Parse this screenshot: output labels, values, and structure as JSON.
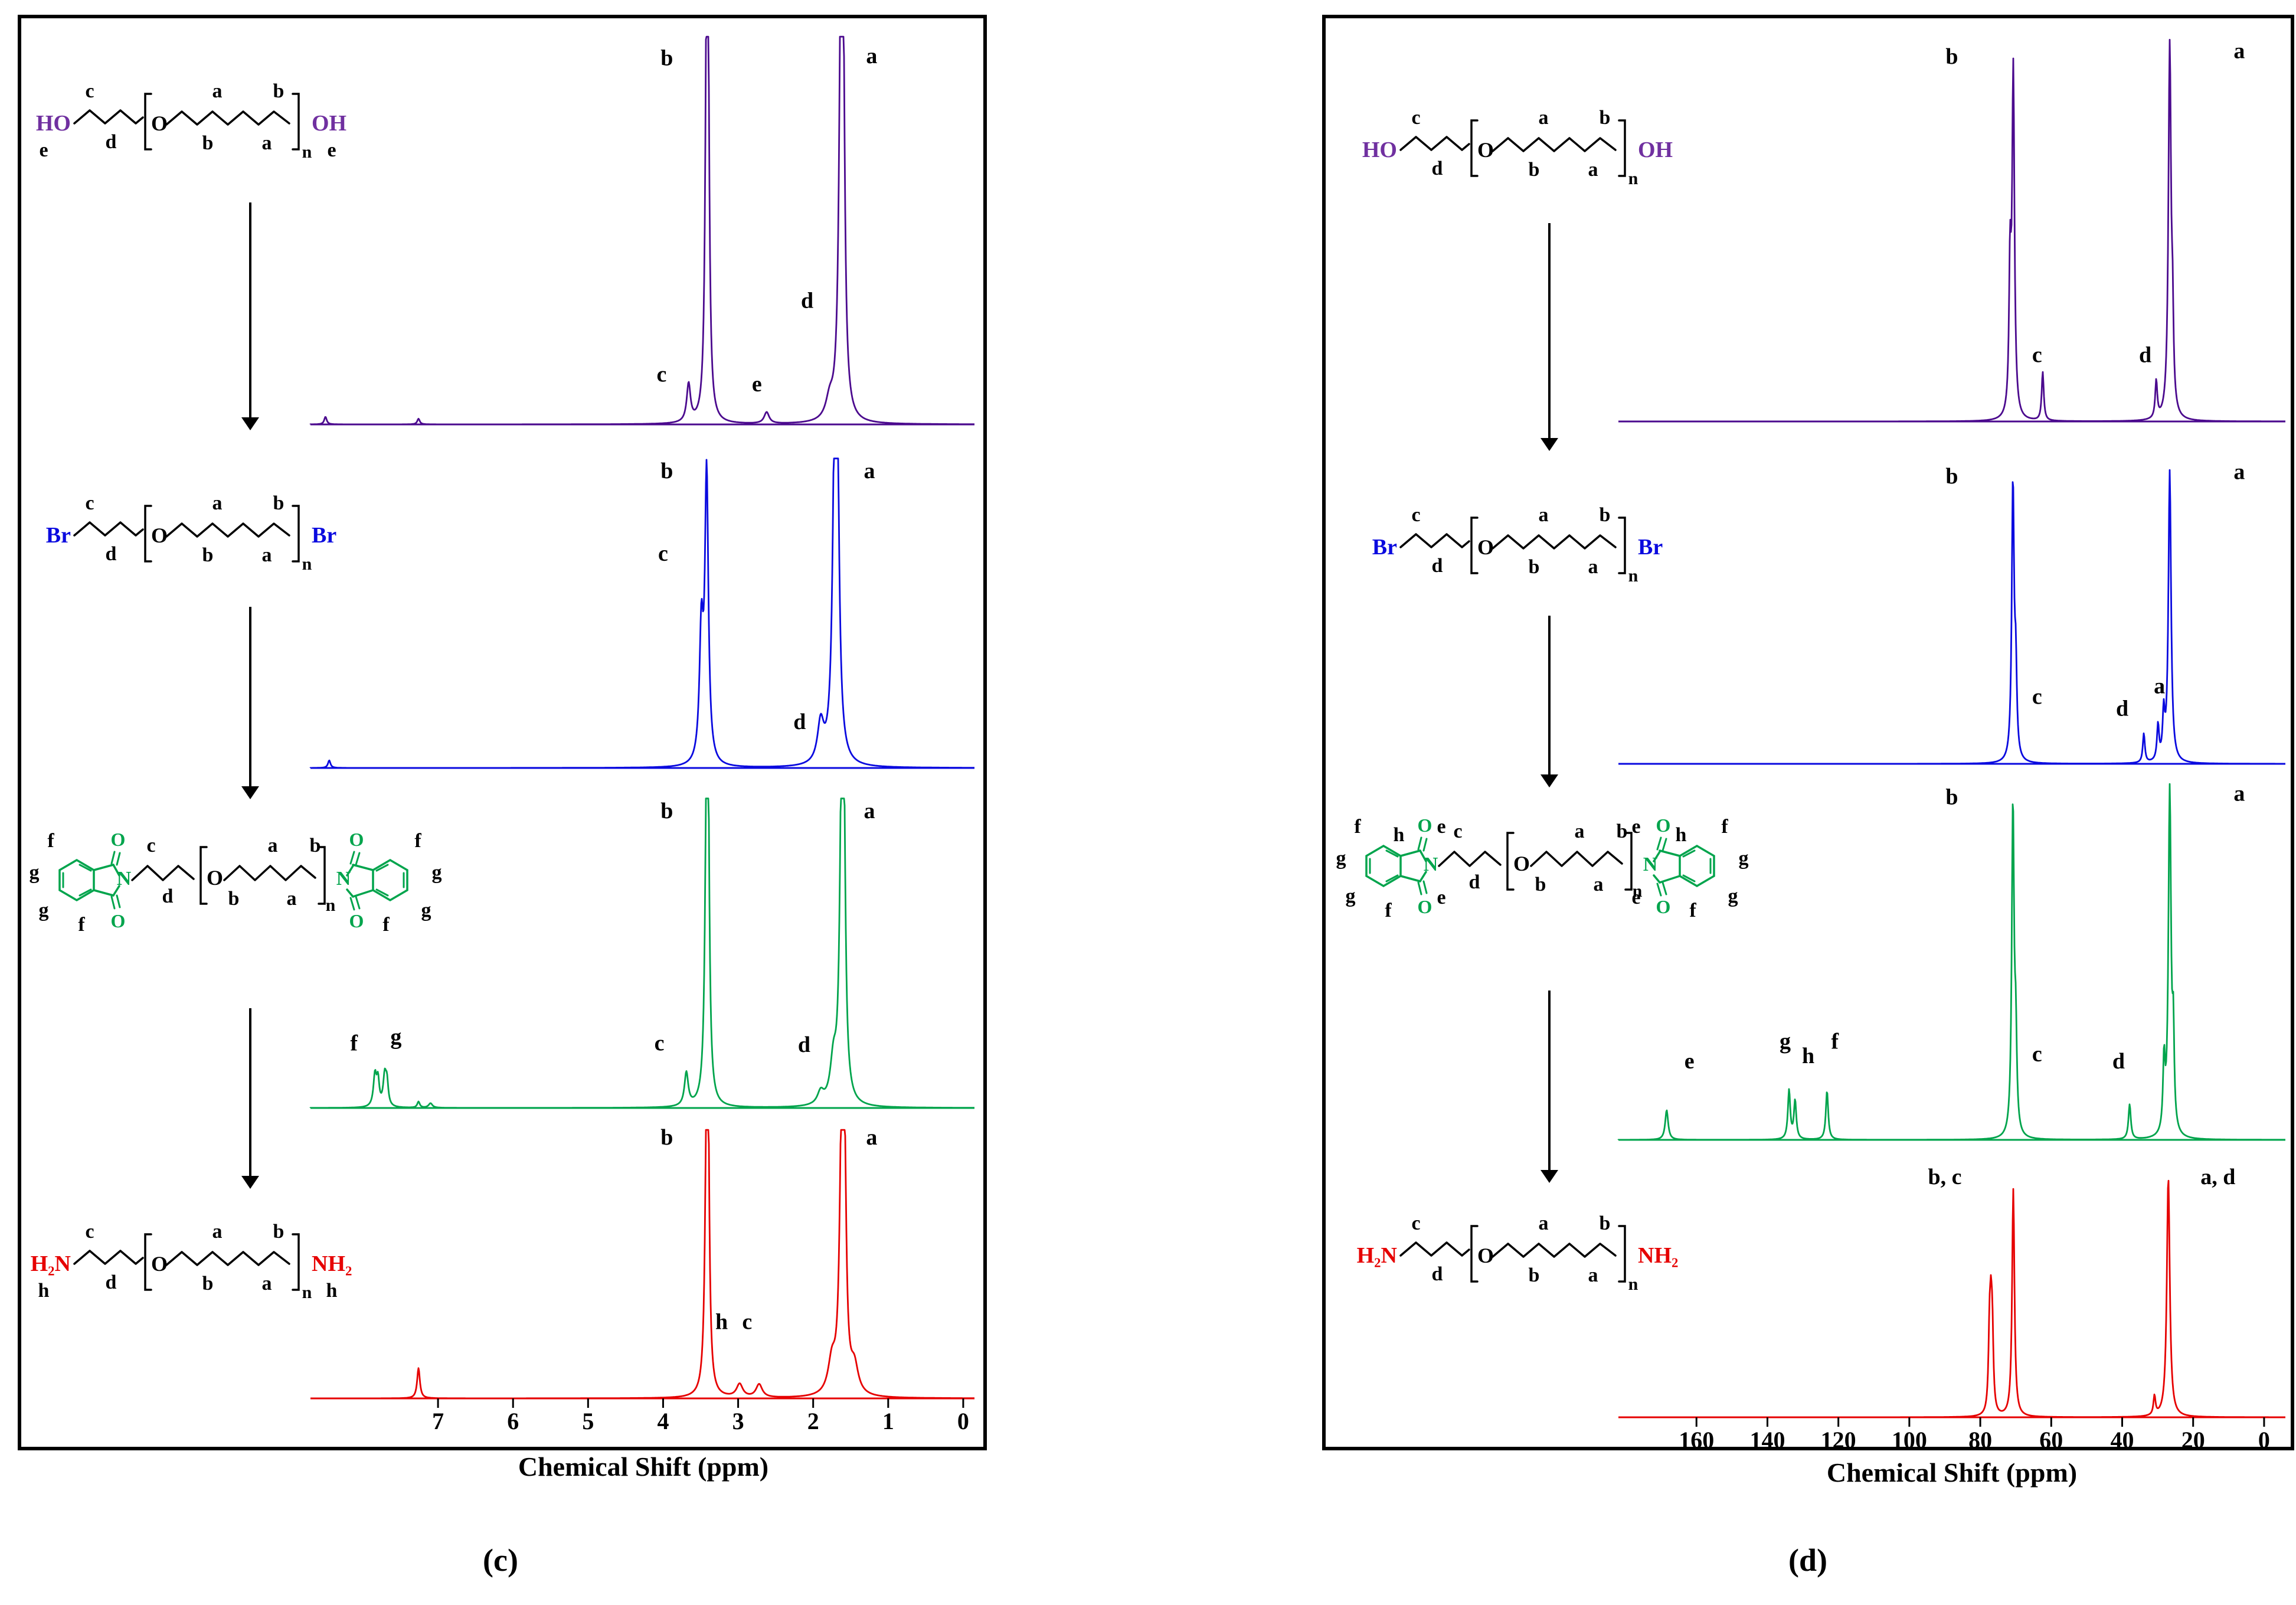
{
  "panel_c": {
    "caption": "(c)",
    "axis_title": "Chemical Shift (ppm)"
  },
  "panel_d": {
    "caption": "(d)",
    "axis_title": "Chemical Shift (ppm)"
  },
  "chart_data": [
    {
      "el": "spec-c1",
      "panel": "c",
      "type": "line",
      "color": "#4B0A8E",
      "xrange": [
        8.7,
        -0.15
      ],
      "peaks": [
        {
          "p": 8.5,
          "h": 0.02,
          "w": 0.02
        },
        {
          "p": 7.26,
          "h": 0.015,
          "w": 0.02
        },
        {
          "p": 3.66,
          "h": 0.1,
          "w": 0.03
        },
        {
          "p": 3.42,
          "h": 0.93,
          "w": 0.022
        },
        {
          "p": 3.4,
          "h": 0.7,
          "w": 0.02
        },
        {
          "p": 2.62,
          "h": 0.03,
          "w": 0.04
        },
        {
          "p": 1.78,
          "h": 0.05,
          "w": 0.06
        },
        {
          "p": 1.63,
          "h": 1.0,
          "w": 0.03
        },
        {
          "p": 1.6,
          "h": 0.75,
          "w": 0.025
        }
      ],
      "labels": [
        {
          "t": "b",
          "p": 3.95,
          "yf": 0.075
        },
        {
          "t": "a",
          "p": 1.22,
          "yf": 0.07
        },
        {
          "t": "d",
          "p": 2.08,
          "yf": 0.7
        },
        {
          "t": "e",
          "p": 2.75,
          "yf": 0.915
        },
        {
          "t": "c",
          "p": 4.02,
          "yf": 0.89
        }
      ]
    },
    {
      "el": "spec-c2",
      "panel": "c",
      "type": "line",
      "color": "#0A0ADF",
      "xrange": [
        8.7,
        -0.15
      ],
      "peaks": [
        {
          "p": 8.45,
          "h": 0.025,
          "w": 0.02
        },
        {
          "p": 3.49,
          "h": 0.42,
          "w": 0.03
        },
        {
          "p": 3.42,
          "h": 0.95,
          "w": 0.028
        },
        {
          "p": 1.9,
          "h": 0.13,
          "w": 0.05
        },
        {
          "p": 1.71,
          "h": 1.0,
          "w": 0.035
        },
        {
          "p": 1.68,
          "h": 0.8,
          "w": 0.03
        }
      ],
      "labels": [
        {
          "t": "b",
          "p": 3.95,
          "yf": 0.07
        },
        {
          "t": "c",
          "p": 4.0,
          "yf": 0.335
        },
        {
          "t": "a",
          "p": 1.25,
          "yf": 0.07
        },
        {
          "t": "d",
          "p": 2.18,
          "yf": 0.875
        }
      ]
    },
    {
      "el": "spec-c3",
      "panel": "c",
      "type": "line",
      "color": "#00A44C",
      "xrange": [
        8.7,
        -0.15
      ],
      "peaks": [
        {
          "p": 7.84,
          "h": 0.105,
          "w": 0.025
        },
        {
          "p": 7.8,
          "h": 0.08,
          "w": 0.02
        },
        {
          "p": 7.71,
          "h": 0.1,
          "w": 0.025
        },
        {
          "p": 7.68,
          "h": 0.07,
          "w": 0.02
        },
        {
          "p": 7.26,
          "h": 0.02,
          "w": 0.02
        },
        {
          "p": 7.1,
          "h": 0.015,
          "w": 0.03
        },
        {
          "p": 3.69,
          "h": 0.11,
          "w": 0.03
        },
        {
          "p": 3.42,
          "h": 0.95,
          "w": 0.025
        },
        {
          "p": 3.4,
          "h": 0.7,
          "w": 0.02
        },
        {
          "p": 1.9,
          "h": 0.04,
          "w": 0.05
        },
        {
          "p": 1.73,
          "h": 0.13,
          "w": 0.05
        },
        {
          "p": 1.62,
          "h": 1.0,
          "w": 0.03
        },
        {
          "p": 1.59,
          "h": 0.7,
          "w": 0.025
        }
      ],
      "labels": [
        {
          "t": "f",
          "p": 8.12,
          "yf": 0.815
        },
        {
          "t": "g",
          "p": 7.56,
          "yf": 0.795
        },
        {
          "t": "c",
          "p": 4.05,
          "yf": 0.815
        },
        {
          "t": "b",
          "p": 3.95,
          "yf": 0.07
        },
        {
          "t": "d",
          "p": 2.12,
          "yf": 0.82
        },
        {
          "t": "a",
          "p": 1.25,
          "yf": 0.07
        }
      ]
    },
    {
      "el": "spec-c4",
      "panel": "c",
      "type": "line",
      "color": "#E60000",
      "xrange": [
        8.7,
        -0.15
      ],
      "peaks": [
        {
          "p": 7.26,
          "h": 0.115,
          "w": 0.022
        },
        {
          "p": 3.42,
          "h": 0.95,
          "w": 0.025
        },
        {
          "p": 3.4,
          "h": 0.72,
          "w": 0.02
        },
        {
          "p": 2.98,
          "h": 0.05,
          "w": 0.05
        },
        {
          "p": 2.72,
          "h": 0.05,
          "w": 0.05
        },
        {
          "p": 1.75,
          "h": 0.12,
          "w": 0.06
        },
        {
          "p": 1.62,
          "h": 1.0,
          "w": 0.032
        },
        {
          "p": 1.58,
          "h": 0.7,
          "w": 0.026
        },
        {
          "p": 1.45,
          "h": 0.1,
          "w": 0.06
        }
      ],
      "labels": [
        {
          "t": "b",
          "p": 3.95,
          "yf": 0.065
        },
        {
          "t": "a",
          "p": 1.22,
          "yf": 0.065
        },
        {
          "t": "h",
          "p": 3.22,
          "yf": 0.745
        },
        {
          "t": "c",
          "p": 2.88,
          "yf": 0.745
        }
      ],
      "axis_ticks": [
        7,
        6,
        5,
        4,
        3,
        2,
        1,
        0
      ]
    },
    {
      "el": "spec-d1",
      "panel": "d",
      "type": "line",
      "color": "#4B0A8E",
      "xrange": [
        182,
        -6
      ],
      "peaks": [
        {
          "p": 71.6,
          "h": 0.38,
          "w": 0.35
        },
        {
          "p": 70.7,
          "h": 0.92,
          "w": 0.4
        },
        {
          "p": 62.4,
          "h": 0.13,
          "w": 0.35
        },
        {
          "p": 30.4,
          "h": 0.1,
          "w": 0.35
        },
        {
          "p": 26.6,
          "h": 1.0,
          "w": 0.45
        },
        {
          "p": 25.8,
          "h": 0.2,
          "w": 0.3
        }
      ],
      "labels": [
        {
          "t": "b",
          "p": 88,
          "yf": 0.065
        },
        {
          "t": "a",
          "p": 7,
          "yf": 0.05
        },
        {
          "t": "c",
          "p": 64,
          "yf": 0.845
        },
        {
          "t": "d",
          "p": 33.5,
          "yf": 0.845
        }
      ]
    },
    {
      "el": "spec-d2",
      "panel": "d",
      "type": "line",
      "color": "#0A0ADF",
      "xrange": [
        182,
        -6
      ],
      "peaks": [
        {
          "p": 70.8,
          "h": 0.95,
          "w": 0.4
        },
        {
          "p": 70.0,
          "h": 0.28,
          "w": 0.35
        },
        {
          "p": 33.9,
          "h": 0.1,
          "w": 0.35
        },
        {
          "p": 29.9,
          "h": 0.12,
          "w": 0.35
        },
        {
          "p": 28.3,
          "h": 0.15,
          "w": 0.35
        },
        {
          "p": 26.6,
          "h": 1.0,
          "w": 0.45
        }
      ],
      "labels": [
        {
          "t": "b",
          "p": 88,
          "yf": 0.065
        },
        {
          "t": "a",
          "p": 7,
          "yf": 0.05
        },
        {
          "t": "c",
          "p": 64,
          "yf": 0.8
        },
        {
          "t": "d",
          "p": 40,
          "yf": 0.84
        },
        {
          "t": "a",
          "p": 29.5,
          "yf": 0.765
        }
      ]
    },
    {
      "el": "spec-d3",
      "panel": "d",
      "type": "line",
      "color": "#00A44C",
      "xrange": [
        182,
        -6
      ],
      "peaks": [
        {
          "p": 168.4,
          "h": 0.085,
          "w": 0.5
        },
        {
          "p": 133.9,
          "h": 0.14,
          "w": 0.4
        },
        {
          "p": 132.2,
          "h": 0.11,
          "w": 0.4
        },
        {
          "p": 123.2,
          "h": 0.14,
          "w": 0.4
        },
        {
          "p": 70.8,
          "h": 0.95,
          "w": 0.4
        },
        {
          "p": 70.0,
          "h": 0.25,
          "w": 0.35
        },
        {
          "p": 37.9,
          "h": 0.1,
          "w": 0.4
        },
        {
          "p": 28.2,
          "h": 0.2,
          "w": 0.35
        },
        {
          "p": 26.6,
          "h": 1.0,
          "w": 0.45
        },
        {
          "p": 25.6,
          "h": 0.25,
          "w": 0.3
        }
      ],
      "labels": [
        {
          "t": "e",
          "p": 162,
          "yf": 0.8
        },
        {
          "t": "g",
          "p": 135,
          "yf": 0.745
        },
        {
          "t": "h",
          "p": 128.5,
          "yf": 0.785
        },
        {
          "t": "f",
          "p": 121,
          "yf": 0.745
        },
        {
          "t": "b",
          "p": 88,
          "yf": 0.06
        },
        {
          "t": "c",
          "p": 64,
          "yf": 0.78
        },
        {
          "t": "d",
          "p": 41,
          "yf": 0.8
        },
        {
          "t": "a",
          "p": 7,
          "yf": 0.05
        }
      ]
    },
    {
      "el": "spec-d4",
      "panel": "d",
      "type": "line",
      "color": "#E60000",
      "xrange": [
        182,
        -6
      ],
      "peaks": [
        {
          "p": 77.4,
          "h": 0.3,
          "w": 0.35
        },
        {
          "p": 77.0,
          "h": 0.33,
          "w": 0.35
        },
        {
          "p": 76.6,
          "h": 0.3,
          "w": 0.35
        },
        {
          "p": 70.7,
          "h": 0.95,
          "w": 0.4
        },
        {
          "p": 30.9,
          "h": 0.08,
          "w": 0.35
        },
        {
          "p": 27.0,
          "h": 1.0,
          "w": 0.5
        }
      ],
      "labels": [
        {
          "t": "b, c",
          "p": 90,
          "yf": 0.06
        },
        {
          "t": "a, d",
          "p": 13,
          "yf": 0.06
        }
      ],
      "axis_ticks": [
        160,
        140,
        120,
        100,
        80,
        60,
        40,
        20,
        0
      ]
    }
  ],
  "structures": [
    {
      "el": "struct-c1",
      "type": "linear",
      "labels": [
        {
          "slot": "end_left",
          "text": "HO",
          "color": "#7030A0"
        },
        {
          "slot": "e_left",
          "text": "e"
        },
        {
          "slot": "c",
          "text": "c"
        },
        {
          "slot": "d",
          "text": "d"
        },
        {
          "slot": "O",
          "text": "O"
        },
        {
          "slot": "a_top",
          "text": "a"
        },
        {
          "slot": "b_top",
          "text": "b"
        },
        {
          "slot": "b_bot",
          "text": "b"
        },
        {
          "slot": "a_bot",
          "text": "a"
        },
        {
          "slot": "n",
          "text": "n"
        },
        {
          "slot": "end_right",
          "text": "OH",
          "color": "#7030A0"
        },
        {
          "slot": "e_right",
          "text": "e"
        }
      ]
    },
    {
      "el": "struct-c2",
      "type": "linear",
      "labels": [
        {
          "slot": "end_left",
          "text": "Br",
          "color": "#0A0ADF"
        },
        {
          "slot": "c",
          "text": "c"
        },
        {
          "slot": "d",
          "text": "d"
        },
        {
          "slot": "O",
          "text": "O"
        },
        {
          "slot": "a_top",
          "text": "a"
        },
        {
          "slot": "b_top",
          "text": "b"
        },
        {
          "slot": "b_bot",
          "text": "b"
        },
        {
          "slot": "a_bot",
          "text": "a"
        },
        {
          "slot": "n",
          "text": "n"
        },
        {
          "slot": "end_right",
          "text": "Br",
          "color": "#0A0ADF"
        }
      ]
    },
    {
      "el": "struct-c3",
      "type": "phthalimide",
      "ring_color": "#00A44C",
      "labels": [
        {
          "slot": "NL",
          "text": "N",
          "color": "#00A44C"
        },
        {
          "slot": "NR",
          "text": "N",
          "color": "#00A44C"
        },
        {
          "slot": "OL1",
          "text": "O",
          "color": "#00A44C"
        },
        {
          "slot": "OL2",
          "text": "O",
          "color": "#00A44C"
        },
        {
          "slot": "OR1",
          "text": "O",
          "color": "#00A44C"
        },
        {
          "slot": "OR2",
          "text": "O",
          "color": "#00A44C"
        },
        {
          "slot": "c",
          "text": "c"
        },
        {
          "slot": "d",
          "text": "d"
        },
        {
          "slot": "O",
          "text": "O"
        },
        {
          "slot": "a_top",
          "text": "a"
        },
        {
          "slot": "b_top",
          "text": "b"
        },
        {
          "slot": "b_bot",
          "text": "b"
        },
        {
          "slot": "a_bot",
          "text": "a"
        },
        {
          "slot": "n",
          "text": "n"
        },
        {
          "slot": "Lf1",
          "text": "f"
        },
        {
          "slot": "Lg1",
          "text": "g"
        },
        {
          "slot": "Lg2",
          "text": "g"
        },
        {
          "slot": "Lf2",
          "text": "f"
        },
        {
          "slot": "Rf1",
          "text": "f"
        },
        {
          "slot": "Rg1",
          "text": "g"
        },
        {
          "slot": "Rg2",
          "text": "g"
        },
        {
          "slot": "Rf2",
          "text": "f"
        }
      ]
    },
    {
      "el": "struct-c4",
      "type": "linear",
      "labels": [
        {
          "slot": "end_left",
          "text": "H₂N",
          "color": "#E60000"
        },
        {
          "slot": "e_left",
          "text": "h"
        },
        {
          "slot": "c",
          "text": "c"
        },
        {
          "slot": "d",
          "text": "d"
        },
        {
          "slot": "O",
          "text": "O"
        },
        {
          "slot": "a_top",
          "text": "a"
        },
        {
          "slot": "b_top",
          "text": "b"
        },
        {
          "slot": "b_bot",
          "text": "b"
        },
        {
          "slot": "a_bot",
          "text": "a"
        },
        {
          "slot": "n",
          "text": "n"
        },
        {
          "slot": "end_right",
          "text": "NH₂",
          "color": "#E60000"
        },
        {
          "slot": "e_right",
          "text": "h"
        }
      ]
    },
    {
      "el": "struct-d1",
      "type": "linear",
      "labels": [
        {
          "slot": "end_left",
          "text": "HO",
          "color": "#7030A0"
        },
        {
          "slot": "c",
          "text": "c"
        },
        {
          "slot": "d",
          "text": "d"
        },
        {
          "slot": "O",
          "text": "O"
        },
        {
          "slot": "a_top",
          "text": "a"
        },
        {
          "slot": "b_top",
          "text": "b"
        },
        {
          "slot": "b_bot",
          "text": "b"
        },
        {
          "slot": "a_bot",
          "text": "a"
        },
        {
          "slot": "n",
          "text": "n"
        },
        {
          "slot": "end_right",
          "text": "OH",
          "color": "#7030A0"
        }
      ]
    },
    {
      "el": "struct-d2",
      "type": "linear",
      "labels": [
        {
          "slot": "end_left",
          "text": "Br",
          "color": "#0A0ADF"
        },
        {
          "slot": "c",
          "text": "c"
        },
        {
          "slot": "d",
          "text": "d"
        },
        {
          "slot": "O",
          "text": "O"
        },
        {
          "slot": "a_top",
          "text": "a"
        },
        {
          "slot": "b_top",
          "text": "b"
        },
        {
          "slot": "b_bot",
          "text": "b"
        },
        {
          "slot": "a_bot",
          "text": "a"
        },
        {
          "slot": "n",
          "text": "n"
        },
        {
          "slot": "end_right",
          "text": "Br",
          "color": "#0A0ADF"
        }
      ]
    },
    {
      "el": "struct-d3",
      "type": "phthalimide",
      "ring_color": "#00A44C",
      "labels": [
        {
          "slot": "NL",
          "text": "N",
          "color": "#00A44C"
        },
        {
          "slot": "NR",
          "text": "N",
          "color": "#00A44C"
        },
        {
          "slot": "OL1",
          "text": "O",
          "color": "#00A44C"
        },
        {
          "slot": "OL2",
          "text": "O",
          "color": "#00A44C"
        },
        {
          "slot": "OR1",
          "text": "O",
          "color": "#00A44C"
        },
        {
          "slot": "OR2",
          "text": "O",
          "color": "#00A44C"
        },
        {
          "slot": "c",
          "text": "c"
        },
        {
          "slot": "d",
          "text": "d"
        },
        {
          "slot": "O",
          "text": "O"
        },
        {
          "slot": "a_top",
          "text": "a"
        },
        {
          "slot": "b_top",
          "text": "b"
        },
        {
          "slot": "b_bot",
          "text": "b"
        },
        {
          "slot": "a_bot",
          "text": "a"
        },
        {
          "slot": "n",
          "text": "n"
        },
        {
          "slot": "Lf1",
          "text": "f"
        },
        {
          "slot": "Lh",
          "text": "h"
        },
        {
          "slot": "Le1",
          "text": "e"
        },
        {
          "slot": "Lg1",
          "text": "g"
        },
        {
          "slot": "Lg2",
          "text": "g"
        },
        {
          "slot": "Lf2",
          "text": "f"
        },
        {
          "slot": "Le2",
          "text": "e"
        },
        {
          "slot": "Rf1",
          "text": "f"
        },
        {
          "slot": "Rh",
          "text": "h"
        },
        {
          "slot": "Re1",
          "text": "e"
        },
        {
          "slot": "Rg1",
          "text": "g"
        },
        {
          "slot": "Rg2",
          "text": "g"
        },
        {
          "slot": "Rf2",
          "text": "f"
        },
        {
          "slot": "Re2",
          "text": "e"
        }
      ]
    },
    {
      "el": "struct-d4",
      "type": "linear",
      "labels": [
        {
          "slot": "end_left",
          "text": "H₂N",
          "color": "#E60000"
        },
        {
          "slot": "c",
          "text": "c"
        },
        {
          "slot": "d",
          "text": "d"
        },
        {
          "slot": "O",
          "text": "O"
        },
        {
          "slot": "a_top",
          "text": "a"
        },
        {
          "slot": "b_top",
          "text": "b"
        },
        {
          "slot": "b_bot",
          "text": "b"
        },
        {
          "slot": "a_bot",
          "text": "a"
        },
        {
          "slot": "n",
          "text": "n"
        },
        {
          "slot": "end_right",
          "text": "NH₂",
          "color": "#E60000"
        }
      ]
    }
  ]
}
